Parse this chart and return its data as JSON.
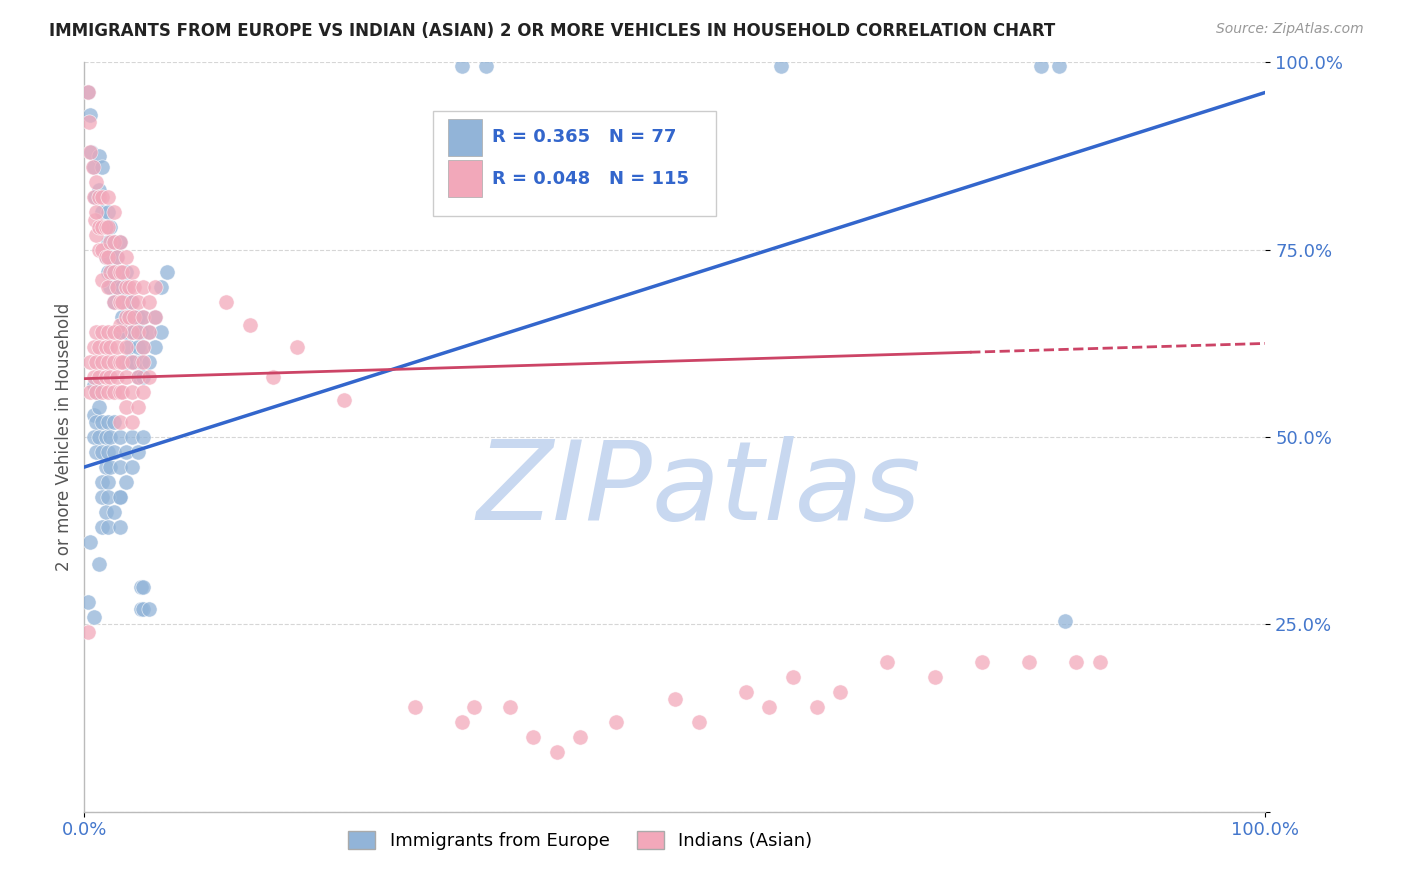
{
  "title": "IMMIGRANTS FROM EUROPE VS INDIAN (ASIAN) 2 OR MORE VEHICLES IN HOUSEHOLD CORRELATION CHART",
  "source": "Source: ZipAtlas.com",
  "ylabel": "2 or more Vehicles in Household",
  "xlim": [
    0.0,
    1.0
  ],
  "ylim": [
    0.0,
    1.0
  ],
  "yticks": [
    0.0,
    0.25,
    0.5,
    0.75,
    1.0
  ],
  "ytick_labels": [
    "",
    "25.0%",
    "50.0%",
    "75.0%",
    "100.0%"
  ],
  "legend_R_blue": "0.365",
  "legend_N_blue": "77",
  "legend_R_pink": "0.048",
  "legend_N_pink": "115",
  "blue_color": "#92B4D8",
  "pink_color": "#F2A8BA",
  "blue_line_color": "#3366CC",
  "pink_line_color": "#CC4466",
  "watermark": "ZIPatlas",
  "watermark_color": "#C8D8F0",
  "background_color": "#FFFFFF",
  "grid_color": "#CCCCCC",
  "title_color": "#222222",
  "axis_label_color": "#4477CC",
  "blue_line_y_start": 0.46,
  "blue_line_y_end": 0.96,
  "pink_line_y_start": 0.578,
  "pink_line_y_end": 0.625,
  "pink_line_solid_end_x": 0.75,
  "blue_scatter": [
    [
      0.003,
      0.96
    ],
    [
      0.005,
      0.93
    ],
    [
      0.006,
      0.88
    ],
    [
      0.008,
      0.86
    ],
    [
      0.009,
      0.82
    ],
    [
      0.012,
      0.875
    ],
    [
      0.012,
      0.83
    ],
    [
      0.015,
      0.86
    ],
    [
      0.015,
      0.8
    ],
    [
      0.018,
      0.78
    ],
    [
      0.018,
      0.74
    ],
    [
      0.02,
      0.8
    ],
    [
      0.02,
      0.76
    ],
    [
      0.02,
      0.72
    ],
    [
      0.022,
      0.78
    ],
    [
      0.022,
      0.74
    ],
    [
      0.022,
      0.7
    ],
    [
      0.025,
      0.76
    ],
    [
      0.025,
      0.72
    ],
    [
      0.025,
      0.68
    ],
    [
      0.028,
      0.74
    ],
    [
      0.028,
      0.7
    ],
    [
      0.03,
      0.76
    ],
    [
      0.03,
      0.72
    ],
    [
      0.03,
      0.68
    ],
    [
      0.03,
      0.64
    ],
    [
      0.032,
      0.7
    ],
    [
      0.032,
      0.66
    ],
    [
      0.035,
      0.72
    ],
    [
      0.035,
      0.68
    ],
    [
      0.035,
      0.64
    ],
    [
      0.035,
      0.6
    ],
    [
      0.038,
      0.66
    ],
    [
      0.038,
      0.62
    ],
    [
      0.04,
      0.68
    ],
    [
      0.04,
      0.64
    ],
    [
      0.04,
      0.6
    ],
    [
      0.042,
      0.64
    ],
    [
      0.042,
      0.6
    ],
    [
      0.045,
      0.66
    ],
    [
      0.045,
      0.62
    ],
    [
      0.045,
      0.58
    ],
    [
      0.048,
      0.64
    ],
    [
      0.048,
      0.6
    ],
    [
      0.05,
      0.66
    ],
    [
      0.05,
      0.62
    ],
    [
      0.05,
      0.58
    ],
    [
      0.055,
      0.64
    ],
    [
      0.055,
      0.6
    ],
    [
      0.06,
      0.66
    ],
    [
      0.06,
      0.62
    ],
    [
      0.065,
      0.7
    ],
    [
      0.065,
      0.64
    ],
    [
      0.07,
      0.72
    ],
    [
      0.008,
      0.57
    ],
    [
      0.008,
      0.53
    ],
    [
      0.008,
      0.5
    ],
    [
      0.01,
      0.56
    ],
    [
      0.01,
      0.52
    ],
    [
      0.01,
      0.48
    ],
    [
      0.012,
      0.54
    ],
    [
      0.012,
      0.5
    ],
    [
      0.015,
      0.52
    ],
    [
      0.015,
      0.48
    ],
    [
      0.015,
      0.44
    ],
    [
      0.018,
      0.5
    ],
    [
      0.018,
      0.46
    ],
    [
      0.02,
      0.52
    ],
    [
      0.02,
      0.48
    ],
    [
      0.02,
      0.44
    ],
    [
      0.022,
      0.5
    ],
    [
      0.022,
      0.46
    ],
    [
      0.025,
      0.52
    ],
    [
      0.025,
      0.48
    ],
    [
      0.03,
      0.5
    ],
    [
      0.03,
      0.46
    ],
    [
      0.03,
      0.42
    ],
    [
      0.035,
      0.48
    ],
    [
      0.035,
      0.44
    ],
    [
      0.04,
      0.5
    ],
    [
      0.04,
      0.46
    ],
    [
      0.045,
      0.48
    ],
    [
      0.05,
      0.5
    ],
    [
      0.005,
      0.36
    ],
    [
      0.012,
      0.33
    ],
    [
      0.015,
      0.42
    ],
    [
      0.015,
      0.38
    ],
    [
      0.018,
      0.4
    ],
    [
      0.02,
      0.42
    ],
    [
      0.02,
      0.38
    ],
    [
      0.025,
      0.4
    ],
    [
      0.03,
      0.42
    ],
    [
      0.03,
      0.38
    ],
    [
      0.048,
      0.3
    ],
    [
      0.05,
      0.3
    ],
    [
      0.048,
      0.27
    ],
    [
      0.05,
      0.27
    ],
    [
      0.055,
      0.27
    ],
    [
      0.003,
      0.28
    ],
    [
      0.008,
      0.26
    ],
    [
      0.32,
      0.995
    ],
    [
      0.34,
      0.995
    ],
    [
      0.59,
      0.995
    ],
    [
      0.81,
      0.995
    ],
    [
      0.825,
      0.995
    ],
    [
      0.83,
      0.255
    ]
  ],
  "pink_scatter": [
    [
      0.003,
      0.96
    ],
    [
      0.004,
      0.92
    ],
    [
      0.005,
      0.88
    ],
    [
      0.007,
      0.86
    ],
    [
      0.008,
      0.82
    ],
    [
      0.009,
      0.79
    ],
    [
      0.01,
      0.84
    ],
    [
      0.01,
      0.8
    ],
    [
      0.01,
      0.77
    ],
    [
      0.012,
      0.82
    ],
    [
      0.012,
      0.78
    ],
    [
      0.012,
      0.75
    ],
    [
      0.015,
      0.82
    ],
    [
      0.015,
      0.78
    ],
    [
      0.015,
      0.75
    ],
    [
      0.015,
      0.71
    ],
    [
      0.018,
      0.78
    ],
    [
      0.018,
      0.74
    ],
    [
      0.02,
      0.82
    ],
    [
      0.02,
      0.78
    ],
    [
      0.02,
      0.74
    ],
    [
      0.02,
      0.7
    ],
    [
      0.022,
      0.76
    ],
    [
      0.022,
      0.72
    ],
    [
      0.025,
      0.8
    ],
    [
      0.025,
      0.76
    ],
    [
      0.025,
      0.72
    ],
    [
      0.025,
      0.68
    ],
    [
      0.028,
      0.74
    ],
    [
      0.028,
      0.7
    ],
    [
      0.03,
      0.76
    ],
    [
      0.03,
      0.72
    ],
    [
      0.03,
      0.68
    ],
    [
      0.03,
      0.65
    ],
    [
      0.032,
      0.72
    ],
    [
      0.032,
      0.68
    ],
    [
      0.035,
      0.74
    ],
    [
      0.035,
      0.7
    ],
    [
      0.035,
      0.66
    ],
    [
      0.038,
      0.7
    ],
    [
      0.038,
      0.66
    ],
    [
      0.04,
      0.72
    ],
    [
      0.04,
      0.68
    ],
    [
      0.04,
      0.64
    ],
    [
      0.042,
      0.7
    ],
    [
      0.042,
      0.66
    ],
    [
      0.045,
      0.68
    ],
    [
      0.045,
      0.64
    ],
    [
      0.05,
      0.7
    ],
    [
      0.05,
      0.66
    ],
    [
      0.05,
      0.62
    ],
    [
      0.055,
      0.68
    ],
    [
      0.055,
      0.64
    ],
    [
      0.06,
      0.7
    ],
    [
      0.06,
      0.66
    ],
    [
      0.005,
      0.6
    ],
    [
      0.005,
      0.56
    ],
    [
      0.008,
      0.62
    ],
    [
      0.008,
      0.58
    ],
    [
      0.01,
      0.64
    ],
    [
      0.01,
      0.6
    ],
    [
      0.01,
      0.56
    ],
    [
      0.012,
      0.62
    ],
    [
      0.012,
      0.58
    ],
    [
      0.015,
      0.64
    ],
    [
      0.015,
      0.6
    ],
    [
      0.015,
      0.56
    ],
    [
      0.018,
      0.62
    ],
    [
      0.018,
      0.58
    ],
    [
      0.02,
      0.64
    ],
    [
      0.02,
      0.6
    ],
    [
      0.02,
      0.56
    ],
    [
      0.022,
      0.62
    ],
    [
      0.022,
      0.58
    ],
    [
      0.025,
      0.64
    ],
    [
      0.025,
      0.6
    ],
    [
      0.025,
      0.56
    ],
    [
      0.028,
      0.62
    ],
    [
      0.028,
      0.58
    ],
    [
      0.03,
      0.64
    ],
    [
      0.03,
      0.6
    ],
    [
      0.03,
      0.56
    ],
    [
      0.03,
      0.52
    ],
    [
      0.032,
      0.6
    ],
    [
      0.032,
      0.56
    ],
    [
      0.035,
      0.62
    ],
    [
      0.035,
      0.58
    ],
    [
      0.035,
      0.54
    ],
    [
      0.04,
      0.6
    ],
    [
      0.04,
      0.56
    ],
    [
      0.04,
      0.52
    ],
    [
      0.045,
      0.58
    ],
    [
      0.045,
      0.54
    ],
    [
      0.05,
      0.6
    ],
    [
      0.05,
      0.56
    ],
    [
      0.055,
      0.58
    ],
    [
      0.003,
      0.24
    ],
    [
      0.12,
      0.68
    ],
    [
      0.14,
      0.65
    ],
    [
      0.16,
      0.58
    ],
    [
      0.18,
      0.62
    ],
    [
      0.22,
      0.55
    ],
    [
      0.28,
      0.14
    ],
    [
      0.32,
      0.12
    ],
    [
      0.33,
      0.14
    ],
    [
      0.36,
      0.14
    ],
    [
      0.38,
      0.1
    ],
    [
      0.4,
      0.08
    ],
    [
      0.42,
      0.1
    ],
    [
      0.45,
      0.12
    ],
    [
      0.5,
      0.15
    ],
    [
      0.52,
      0.12
    ],
    [
      0.56,
      0.16
    ],
    [
      0.58,
      0.14
    ],
    [
      0.6,
      0.18
    ],
    [
      0.62,
      0.14
    ],
    [
      0.64,
      0.16
    ],
    [
      0.68,
      0.2
    ],
    [
      0.72,
      0.18
    ],
    [
      0.76,
      0.2
    ],
    [
      0.8,
      0.2
    ],
    [
      0.84,
      0.2
    ],
    [
      0.86,
      0.2
    ]
  ]
}
